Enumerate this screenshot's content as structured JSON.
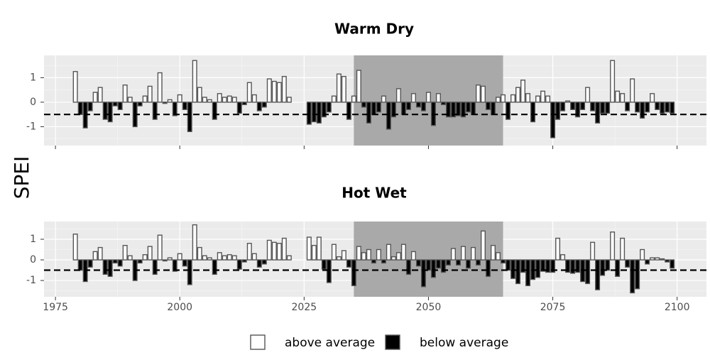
{
  "chart_data": [
    {
      "type": "bar",
      "title": "Warm Dry",
      "x": [
        1979,
        1980,
        1981,
        1982,
        1983,
        1984,
        1985,
        1986,
        1987,
        1988,
        1989,
        1990,
        1991,
        1992,
        1993,
        1994,
        1995,
        1996,
        1997,
        1998,
        1999,
        2000,
        2001,
        2002,
        2003,
        2004,
        2005,
        2006,
        2007,
        2008,
        2009,
        2010,
        2011,
        2012,
        2013,
        2014,
        2015,
        2016,
        2017,
        2018,
        2019,
        2020,
        2021,
        2022,
        2026,
        2027,
        2028,
        2029,
        2030,
        2031,
        2032,
        2033,
        2034,
        2035,
        2036,
        2037,
        2038,
        2039,
        2040,
        2041,
        2042,
        2043,
        2044,
        2045,
        2046,
        2047,
        2048,
        2049,
        2050,
        2051,
        2052,
        2053,
        2054,
        2055,
        2056,
        2057,
        2058,
        2059,
        2060,
        2061,
        2062,
        2063,
        2064,
        2065,
        2066,
        2067,
        2068,
        2069,
        2070,
        2071,
        2072,
        2073,
        2074,
        2075,
        2076,
        2077,
        2078,
        2079,
        2080,
        2081,
        2082,
        2083,
        2084,
        2085,
        2086,
        2087,
        2088,
        2089,
        2090,
        2091,
        2092,
        2093,
        2094,
        2095,
        2096,
        2097,
        2098,
        2099
      ],
      "values": [
        1.25,
        -0.5,
        -1.05,
        -0.35,
        0.4,
        0.6,
        -0.7,
        -0.8,
        -0.15,
        -0.3,
        0.7,
        0.2,
        -1.0,
        -0.15,
        0.25,
        0.65,
        -0.7,
        1.2,
        -0.05,
        0.1,
        -0.55,
        0.3,
        -0.3,
        -1.2,
        1.7,
        0.6,
        0.2,
        0.1,
        -0.7,
        0.35,
        0.2,
        0.25,
        0.2,
        -0.45,
        -0.1,
        0.8,
        0.3,
        -0.35,
        -0.2,
        0.95,
        0.85,
        0.8,
        1.05,
        0.2,
        -0.9,
        -0.8,
        -0.85,
        -0.6,
        -0.4,
        0.25,
        1.15,
        1.05,
        -0.7,
        0.25,
        1.3,
        -0.2,
        -0.85,
        -0.5,
        -0.4,
        0.25,
        -1.1,
        -0.6,
        0.55,
        -0.5,
        -0.3,
        0.35,
        -0.2,
        -0.35,
        0.4,
        -0.95,
        0.35,
        -0.1,
        -0.6,
        -0.6,
        -0.55,
        -0.6,
        -0.4,
        -0.5,
        0.7,
        0.65,
        -0.3,
        -0.5,
        0.2,
        0.3,
        -0.7,
        0.3,
        0.6,
        0.9,
        0.35,
        -0.8,
        0.25,
        0.45,
        0.25,
        -1.45,
        -0.7,
        -0.35,
        0.05,
        -0.3,
        -0.6,
        -0.3,
        0.6,
        -0.35,
        -0.85,
        -0.45,
        -0.45,
        1.7,
        0.45,
        0.35,
        -0.35,
        0.95,
        -0.4,
        -0.65,
        -0.4,
        0.35,
        -0.3,
        -0.45,
        -0.4,
        -0.45
      ],
      "xlim": [
        1972.7,
        2105.9
      ],
      "xticks": [
        1975,
        2000,
        2025,
        2050,
        2075,
        2100
      ],
      "show_xtick_labels": false,
      "ylim": [
        -1.77,
        1.91
      ],
      "yticks": [
        -1,
        0,
        1
      ],
      "hline": -0.5,
      "highlight": [
        2035,
        2065
      ],
      "grid": true
    },
    {
      "type": "bar",
      "title": "Hot Wet",
      "x": [
        1979,
        1980,
        1981,
        1982,
        1983,
        1984,
        1985,
        1986,
        1987,
        1988,
        1989,
        1990,
        1991,
        1992,
        1993,
        1994,
        1995,
        1996,
        1997,
        1998,
        1999,
        2000,
        2001,
        2002,
        2003,
        2004,
        2005,
        2006,
        2007,
        2008,
        2009,
        2010,
        2011,
        2012,
        2013,
        2014,
        2015,
        2016,
        2017,
        2018,
        2019,
        2020,
        2021,
        2022,
        2026,
        2027,
        2028,
        2029,
        2030,
        2031,
        2032,
        2033,
        2034,
        2035,
        2036,
        2037,
        2038,
        2039,
        2040,
        2041,
        2042,
        2043,
        2044,
        2045,
        2046,
        2047,
        2048,
        2049,
        2050,
        2051,
        2052,
        2053,
        2054,
        2055,
        2056,
        2057,
        2058,
        2059,
        2060,
        2061,
        2062,
        2063,
        2064,
        2065,
        2066,
        2067,
        2068,
        2069,
        2070,
        2071,
        2072,
        2073,
        2074,
        2075,
        2076,
        2077,
        2078,
        2079,
        2080,
        2081,
        2082,
        2083,
        2084,
        2085,
        2086,
        2087,
        2088,
        2089,
        2090,
        2091,
        2092,
        2093,
        2094,
        2095,
        2096,
        2097,
        2098,
        2099
      ],
      "values": [
        1.25,
        -0.5,
        -1.05,
        -0.35,
        0.4,
        0.6,
        -0.7,
        -0.8,
        -0.15,
        -0.3,
        0.7,
        0.2,
        -1.0,
        -0.15,
        0.25,
        0.65,
        -0.7,
        1.2,
        -0.05,
        0.1,
        -0.55,
        0.3,
        -0.3,
        -1.2,
        1.7,
        0.6,
        0.2,
        0.1,
        -0.7,
        0.35,
        0.2,
        0.25,
        0.2,
        -0.45,
        -0.1,
        0.8,
        0.3,
        -0.35,
        -0.2,
        0.95,
        0.85,
        0.8,
        1.05,
        0.2,
        1.1,
        0.7,
        1.1,
        -0.45,
        -1.1,
        0.75,
        0.15,
        0.45,
        -0.35,
        -1.25,
        0.65,
        0.35,
        0.5,
        -0.15,
        0.5,
        -0.15,
        0.75,
        0.15,
        0.35,
        0.75,
        -0.7,
        0.4,
        -0.3,
        -1.3,
        -0.5,
        -0.85,
        -0.4,
        -0.6,
        -0.25,
        0.55,
        -0.25,
        0.65,
        -0.4,
        0.6,
        -0.25,
        1.4,
        -0.8,
        0.7,
        0.35,
        -0.15,
        -0.5,
        -0.9,
        -1.15,
        -0.6,
        -1.25,
        -0.95,
        -0.85,
        -0.55,
        -0.6,
        -0.6,
        1.05,
        0.25,
        -0.6,
        -0.65,
        -0.6,
        -1.05,
        -1.15,
        0.85,
        -1.45,
        -0.75,
        -0.5,
        1.35,
        -0.8,
        1.05,
        -0.35,
        -1.6,
        -1.4,
        0.5,
        -0.2,
        0.1,
        0.1,
        0.05,
        -0.1,
        -0.4
      ],
      "xlim": [
        1972.7,
        2105.9
      ],
      "xticks": [
        1975,
        2000,
        2025,
        2050,
        2075,
        2100
      ],
      "show_xtick_labels": true,
      "ylim": [
        -1.79,
        1.86
      ],
      "yticks": [
        -1,
        0,
        1
      ],
      "hline": -0.5,
      "highlight": [
        2035,
        2065
      ],
      "grid": true
    }
  ],
  "y_label": "SPEI",
  "legend": [
    {
      "label": "above average",
      "color": "#ffffff"
    },
    {
      "label": "below average",
      "color": "#000000"
    }
  ]
}
